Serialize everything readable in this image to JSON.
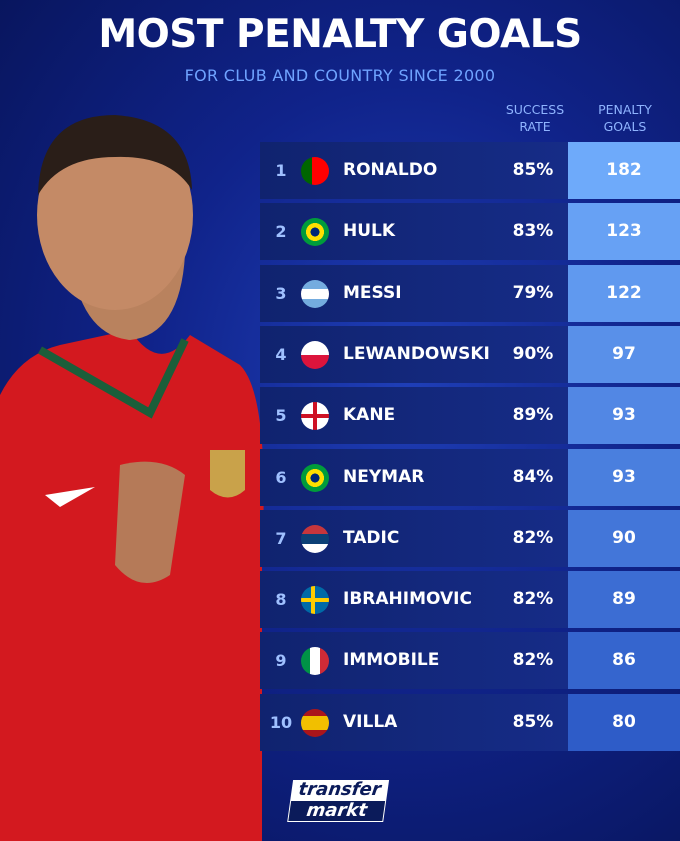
{
  "header": {
    "title": "MOST PENALTY GOALS",
    "subtitle": "FOR CLUB AND COUNTRY SINCE 2000"
  },
  "table": {
    "columns": [
      "SUCCESS RATE",
      "PENALTY GOALS"
    ],
    "rows": [
      [
        1,
        "RONALDO",
        "85%",
        182
      ],
      [
        2,
        "HULK",
        "83%",
        123
      ],
      [
        3,
        "MESSI",
        "79%",
        122
      ],
      [
        4,
        "LEWANDOWSKI",
        "90%",
        97
      ],
      [
        5,
        "KANE",
        "89%",
        93
      ],
      [
        6,
        "NEYMAR",
        "84%",
        93
      ],
      [
        7,
        "TADIC",
        "82%",
        90
      ],
      [
        8,
        "IBRAHIMOVIC",
        "82%",
        89
      ],
      [
        9,
        "IMMOBILE",
        "82%",
        86
      ],
      [
        10,
        "VILLA",
        "85%",
        80
      ]
    ]
  },
  "logo": {
    "line1": "transfer",
    "line2": "markt"
  }
}
